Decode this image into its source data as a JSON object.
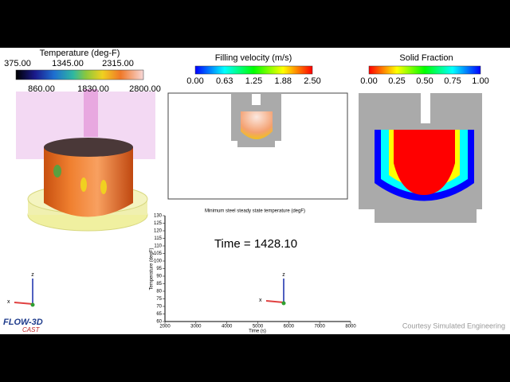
{
  "temperature_legend": {
    "title": "Temperature (deg-F)",
    "labels_top": [
      "375.00",
      "1345.00",
      "2315.00"
    ],
    "labels_bottom": [
      "860.00",
      "1830.00",
      "2800.00"
    ]
  },
  "velocity_legend": {
    "title": "Filling velocity (m/s)",
    "labels": [
      "0.00",
      "0.63",
      "1.25",
      "1.88",
      "2.50"
    ]
  },
  "solid_fraction_legend": {
    "title": "Solid Fraction",
    "labels": [
      "0.00",
      "0.25",
      "0.50",
      "0.75",
      "1.00"
    ]
  },
  "plot": {
    "title": "Minimum steel steady state temperature (degF)",
    "y_label": "Temperature (degF)",
    "x_label": "Time (s)",
    "ylim": [
      60,
      130
    ],
    "yticks": [
      60,
      65,
      70,
      75,
      80,
      85,
      90,
      95,
      100,
      105,
      110,
      115,
      120,
      125,
      130
    ],
    "xlim": [
      2000,
      8000
    ],
    "xticks": [
      2000,
      3000,
      4000,
      5000,
      6000,
      7000,
      8000
    ]
  },
  "time_label": "Time = 1428.10",
  "credit": "Courtesy Simulated Engineering",
  "logo": {
    "line1": "FLOW-3D",
    "line2": "CAST"
  },
  "triads": [
    {
      "z": "z",
      "x": "x"
    },
    {
      "z": "z",
      "x": "x"
    }
  ]
}
